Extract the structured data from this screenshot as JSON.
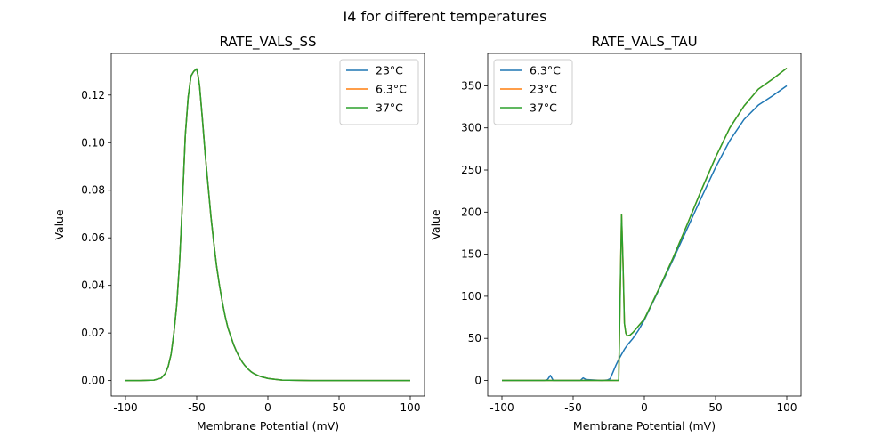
{
  "figure": {
    "suptitle": "I4 for different temperatures"
  },
  "chart_data": [
    {
      "type": "line",
      "title": "RATE_VALS_SS",
      "xlabel": "Membrane Potential (mV)",
      "ylabel": "Value",
      "xlim": [
        -110,
        110
      ],
      "ylim": [
        -0.0065,
        0.1375
      ],
      "xticks": [
        -100,
        -50,
        0,
        50,
        100
      ],
      "yticks": [
        0.0,
        0.02,
        0.04,
        0.06,
        0.08,
        0.1,
        0.12
      ],
      "ytick_labels": [
        "0.00",
        "0.02",
        "0.04",
        "0.06",
        "0.08",
        "0.10",
        "0.12"
      ],
      "grid": false,
      "legend_position": "upper right",
      "legend": [
        "23°C",
        "6.3°C",
        "37°C"
      ],
      "series": [
        {
          "name": "23°C",
          "color": "#1f77b4",
          "x": [
            -100,
            -90,
            -80,
            -75,
            -72,
            -70,
            -68,
            -66,
            -64,
            -62,
            -60,
            -58,
            -56,
            -54,
            -52,
            -50,
            -49,
            -48,
            -46,
            -44,
            -42,
            -40,
            -38,
            -36,
            -34,
            -32,
            -30,
            -28,
            -26,
            -24,
            -22,
            -20,
            -18,
            -16,
            -14,
            -12,
            -10,
            -8,
            -6,
            -4,
            -2,
            0,
            5,
            10,
            20,
            30,
            40,
            50,
            60,
            70,
            80,
            90,
            100
          ],
          "y": [
            0,
            0,
            0.0002,
            0.001,
            0.003,
            0.006,
            0.011,
            0.02,
            0.032,
            0.05,
            0.075,
            0.103,
            0.119,
            0.128,
            0.13,
            0.131,
            0.128,
            0.124,
            0.11,
            0.095,
            0.082,
            0.069,
            0.058,
            0.048,
            0.04,
            0.033,
            0.027,
            0.022,
            0.0185,
            0.015,
            0.0122,
            0.0098,
            0.0078,
            0.0062,
            0.0049,
            0.0038,
            0.003,
            0.0024,
            0.0019,
            0.0015,
            0.0012,
            0.0009,
            0.0005,
            0.0002,
            0.0001,
            0,
            0,
            0,
            0,
            0,
            0,
            0,
            0
          ]
        },
        {
          "name": "6.3°C",
          "color": "#ff7f0e",
          "x": [
            -100,
            -90,
            -80,
            -75,
            -72,
            -70,
            -68,
            -66,
            -64,
            -62,
            -60,
            -58,
            -56,
            -54,
            -52,
            -50,
            -49,
            -48,
            -46,
            -44,
            -42,
            -40,
            -38,
            -36,
            -34,
            -32,
            -30,
            -28,
            -26,
            -24,
            -22,
            -20,
            -18,
            -16,
            -14,
            -12,
            -10,
            -8,
            -6,
            -4,
            -2,
            0,
            5,
            10,
            20,
            30,
            40,
            50,
            60,
            70,
            80,
            90,
            100
          ],
          "y": [
            0,
            0,
            0.0002,
            0.001,
            0.003,
            0.006,
            0.011,
            0.02,
            0.032,
            0.05,
            0.075,
            0.103,
            0.119,
            0.128,
            0.13,
            0.131,
            0.128,
            0.124,
            0.11,
            0.095,
            0.082,
            0.069,
            0.058,
            0.048,
            0.04,
            0.033,
            0.027,
            0.022,
            0.0185,
            0.015,
            0.0122,
            0.0098,
            0.0078,
            0.0062,
            0.0049,
            0.0038,
            0.003,
            0.0024,
            0.0019,
            0.0015,
            0.0012,
            0.0009,
            0.0005,
            0.0002,
            0.0001,
            0,
            0,
            0,
            0,
            0,
            0,
            0,
            0
          ]
        },
        {
          "name": "37°C",
          "color": "#2ca02c",
          "x": [
            -100,
            -90,
            -80,
            -75,
            -72,
            -70,
            -68,
            -66,
            -64,
            -62,
            -60,
            -58,
            -56,
            -54,
            -52,
            -50,
            -49,
            -48,
            -46,
            -44,
            -42,
            -40,
            -38,
            -36,
            -34,
            -32,
            -30,
            -28,
            -26,
            -24,
            -22,
            -20,
            -18,
            -16,
            -14,
            -12,
            -10,
            -8,
            -6,
            -4,
            -2,
            0,
            5,
            10,
            20,
            30,
            40,
            50,
            60,
            70,
            80,
            90,
            100
          ],
          "y": [
            0,
            0,
            0.0002,
            0.001,
            0.003,
            0.006,
            0.011,
            0.02,
            0.032,
            0.05,
            0.075,
            0.103,
            0.119,
            0.128,
            0.13,
            0.131,
            0.128,
            0.124,
            0.11,
            0.095,
            0.082,
            0.069,
            0.058,
            0.048,
            0.04,
            0.033,
            0.027,
            0.022,
            0.0185,
            0.015,
            0.0122,
            0.0098,
            0.0078,
            0.0062,
            0.0049,
            0.0038,
            0.003,
            0.0024,
            0.0019,
            0.0015,
            0.0012,
            0.0009,
            0.0005,
            0.0002,
            0.0001,
            0,
            0,
            0,
            0,
            0,
            0,
            0,
            0
          ]
        }
      ]
    },
    {
      "type": "line",
      "title": "RATE_VALS_TAU",
      "xlabel": "Membrane Potential (mV)",
      "ylabel": "Value",
      "xlim": [
        -110,
        110
      ],
      "ylim": [
        -18.5,
        388.5
      ],
      "xticks": [
        -100,
        -50,
        0,
        50,
        100
      ],
      "yticks": [
        0,
        50,
        100,
        150,
        200,
        250,
        300,
        350
      ],
      "ytick_labels": [
        "0",
        "50",
        "100",
        "150",
        "200",
        "250",
        "300",
        "350"
      ],
      "grid": false,
      "legend_position": "upper left",
      "legend": [
        "6.3°C",
        "23°C",
        "37°C"
      ],
      "series": [
        {
          "name": "6.3°C",
          "color": "#1f77b4",
          "x": [
            -100,
            -70,
            -68,
            -66,
            -64,
            -45,
            -43,
            -41,
            -30,
            -26,
            -24,
            -22,
            -20,
            -18,
            -16,
            -14,
            -12,
            -10,
            -8,
            -6,
            -4,
            -2,
            0,
            10,
            20,
            30,
            40,
            50,
            60,
            70,
            80,
            90,
            100
          ],
          "y": [
            0,
            0,
            1,
            6,
            0,
            0,
            3,
            1,
            0,
            0.5,
            2,
            10,
            18,
            25,
            31,
            37,
            42,
            46,
            50,
            55,
            60,
            66,
            72,
            107,
            143,
            180,
            217,
            253,
            285,
            310,
            327,
            338,
            350
          ]
        },
        {
          "name": "23°C",
          "color": "#ff7f0e",
          "x": [
            -100,
            -40,
            -30,
            -18,
            -17,
            -16,
            -15,
            -14,
            -13,
            -12,
            -10,
            -8,
            -6,
            -4,
            -2,
            0,
            10,
            20,
            30,
            40,
            50,
            60,
            70,
            80,
            90,
            100
          ],
          "y": [
            0,
            0,
            0,
            0,
            100,
            197,
            140,
            68,
            56,
            53,
            54,
            57,
            61,
            65,
            69,
            73,
            108,
            145,
            185,
            226,
            265,
            300,
            326,
            346,
            358,
            371
          ]
        },
        {
          "name": "37°C",
          "color": "#2ca02c",
          "x": [
            -100,
            -40,
            -30,
            -18,
            -17,
            -16,
            -15,
            -14,
            -13,
            -12,
            -10,
            -8,
            -6,
            -4,
            -2,
            0,
            10,
            20,
            30,
            40,
            50,
            60,
            70,
            80,
            90,
            100
          ],
          "y": [
            0,
            0,
            0,
            0,
            100,
            197,
            140,
            68,
            56,
            53,
            54,
            57,
            61,
            65,
            69,
            73,
            108,
            145,
            185,
            226,
            265,
            300,
            326,
            346,
            358,
            371
          ]
        }
      ]
    }
  ]
}
